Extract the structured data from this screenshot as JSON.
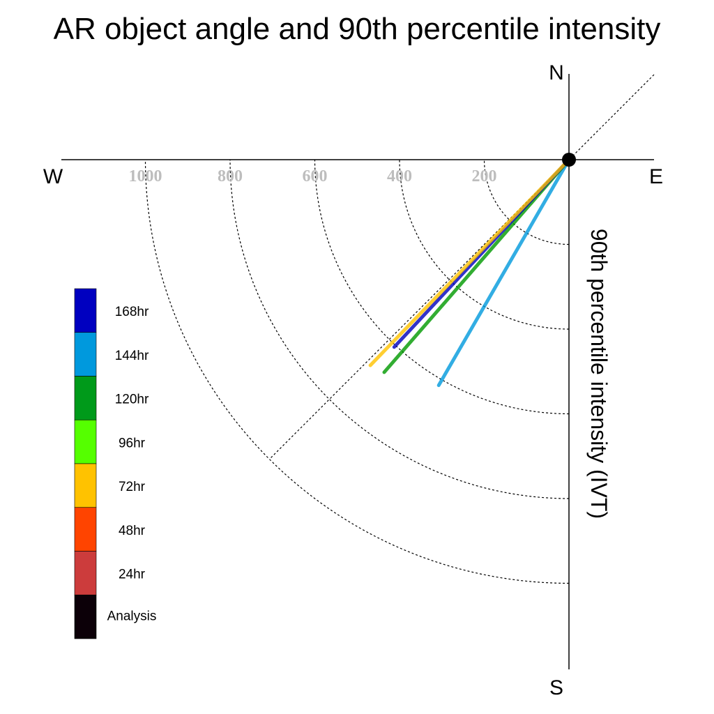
{
  "chart_data": {
    "type": "polar-vector",
    "title": "AR object angle and 90th percentile intensity",
    "ylabel": "90th percentile intensity (IVT)",
    "compass": [
      "N",
      "E",
      "S",
      "W"
    ],
    "rings": [
      200,
      400,
      600,
      800,
      1000
    ],
    "max_radius": 1200,
    "series": [
      {
        "name": "144hr",
        "color": "#0099dd",
        "magnitude": 615,
        "angle_deg": 210
      },
      {
        "name": "120hr",
        "color": "#009900",
        "magnitude": 665,
        "angle_deg": 221
      },
      {
        "name": "168hr",
        "color": "#0000bb",
        "magnitude": 605,
        "angle_deg": 223
      },
      {
        "name": "72hr",
        "color": "#ffc200",
        "magnitude": 675,
        "angle_deg": 224
      }
    ],
    "legend": [
      {
        "label": "168hr",
        "color": "#0000c0"
      },
      {
        "label": "144hr",
        "color": "#0099dd"
      },
      {
        "label": "120hr",
        "color": "#009a1a"
      },
      {
        "label": "96hr",
        "color": "#55ff00"
      },
      {
        "label": "72hr",
        "color": "#ffc200"
      },
      {
        "label": "48hr",
        "color": "#ff4400"
      },
      {
        "label": "24hr",
        "color": "#cc3c3c"
      },
      {
        "label": "Analysis",
        "color": "#0c0008"
      }
    ]
  }
}
